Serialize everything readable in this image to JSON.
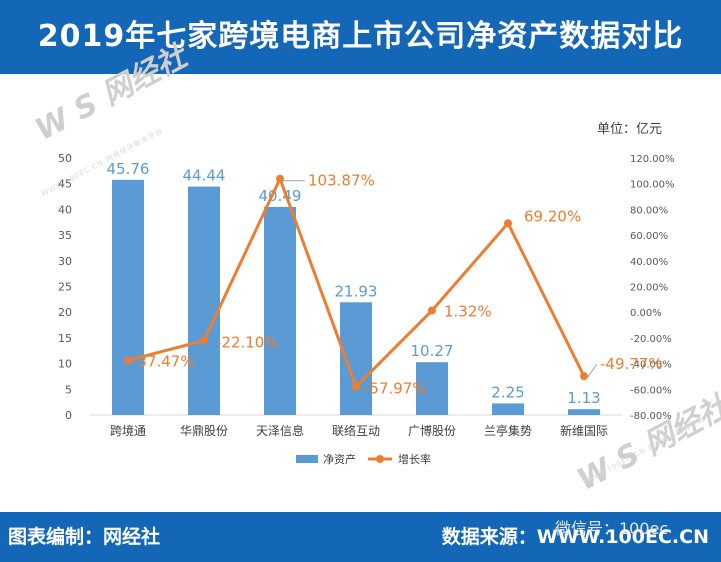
{
  "header": {
    "title": "2019年七家跨境电商上市公司净资产数据对比"
  },
  "footer": {
    "credit": "图表编制：网经社",
    "source": "数据来源：WWW.100EC.CN"
  },
  "watermark": {
    "text": "W S 网经社",
    "sub": "WWW.100EC.CN 网络经济服务平台",
    "wechat": "微信号：100ec"
  },
  "chart_data": {
    "type": "bar",
    "unit_label": "单位：亿元",
    "categories": [
      "跨境通",
      "华鼎股份",
      "天泽信息",
      "联络互动",
      "广博股份",
      "兰亭集势",
      "新维国际"
    ],
    "series": [
      {
        "name": "净资产",
        "type": "bar",
        "axis": "left",
        "color": "#5b9bd5",
        "values": [
          45.76,
          44.44,
          40.49,
          21.93,
          10.27,
          2.25,
          1.13
        ],
        "labels": [
          "45.76",
          "44.44",
          "40.49",
          "21.93",
          "10.27",
          "2.25",
          "1.13"
        ]
      },
      {
        "name": "增长率",
        "type": "line",
        "axis": "right",
        "color": "#ed7d31",
        "values": [
          -37.47,
          -22.1,
          103.87,
          -57.97,
          1.32,
          69.2,
          -49.77
        ],
        "labels": [
          "-37.47%",
          "-22.10%",
          "103.87%",
          "-57.97%",
          "1.32%",
          "69.20%",
          "-49.77%"
        ]
      }
    ],
    "y_left": {
      "min": 0,
      "max": 50,
      "step": 5,
      "ticks": [
        "0",
        "5",
        "10",
        "15",
        "20",
        "25",
        "30",
        "35",
        "40",
        "45",
        "50"
      ]
    },
    "y_right": {
      "min": -80,
      "max": 120,
      "step": 20,
      "ticks": [
        "-80.00%",
        "-60.00%",
        "-40.00%",
        "-20.00%",
        "0.00%",
        "20.00%",
        "40.00%",
        "60.00%",
        "80.00%",
        "100.00%",
        "120.00%"
      ]
    },
    "legend_position": "bottom",
    "grid": false
  }
}
